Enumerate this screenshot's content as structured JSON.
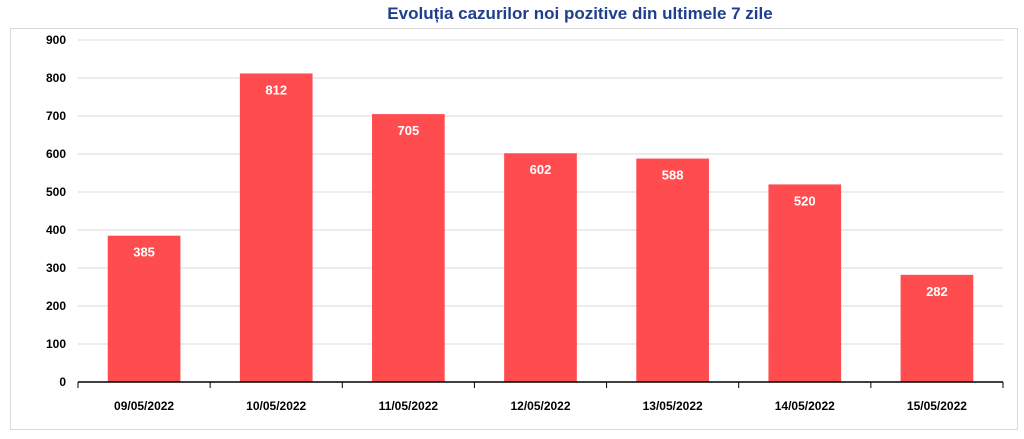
{
  "chart_data": {
    "type": "bar",
    "title": "Evoluția cazurilor noi pozitive din ultimele 7 zile",
    "xlabel": "",
    "ylabel": "",
    "categories": [
      "09/05/2022",
      "10/05/2022",
      "11/05/2022",
      "12/05/2022",
      "13/05/2022",
      "14/05/2022",
      "15/05/2022"
    ],
    "values": [
      385,
      812,
      705,
      602,
      588,
      520,
      282
    ],
    "data_labels": [
      "385",
      "812",
      "705",
      "602",
      "588",
      "520",
      "282"
    ],
    "ylim": [
      0,
      900
    ],
    "yticks": [
      0,
      100,
      200,
      300,
      400,
      500,
      600,
      700,
      800,
      900
    ],
    "grid": true,
    "legend": "none",
    "colors": {
      "bar": "#ff4d4f",
      "grid": "#d9d9d9",
      "axis": "#000000",
      "title": "#1f3e8c"
    }
  }
}
